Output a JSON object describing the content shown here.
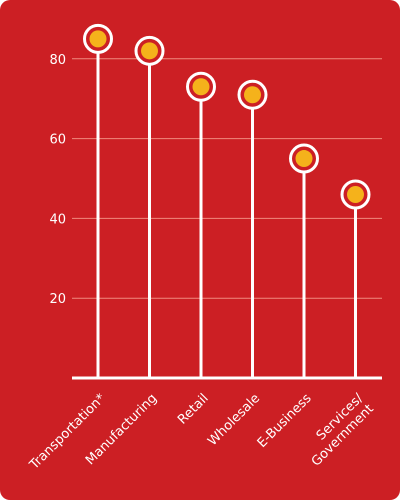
{
  "colors": {
    "background": "#cc1f24",
    "stem": "#ffffff",
    "marker_fill": "#f5b21b",
    "marker_ring": "#ffffff",
    "grid": "#f08a7e",
    "text": "#ffffff"
  },
  "chart_data": {
    "type": "lollipop",
    "title": "",
    "xlabel": "",
    "ylabel": "",
    "ylim": [
      0,
      94
    ],
    "yticks": [
      20,
      40,
      60,
      80
    ],
    "grid": true,
    "categories": [
      [
        "Transportation*"
      ],
      [
        "Manufacturing"
      ],
      [
        "Retail"
      ],
      [
        "Wholesale"
      ],
      [
        "E-Business"
      ],
      [
        "Services/",
        "Government"
      ]
    ],
    "values": [
      85,
      82,
      73,
      71,
      55,
      46
    ]
  }
}
